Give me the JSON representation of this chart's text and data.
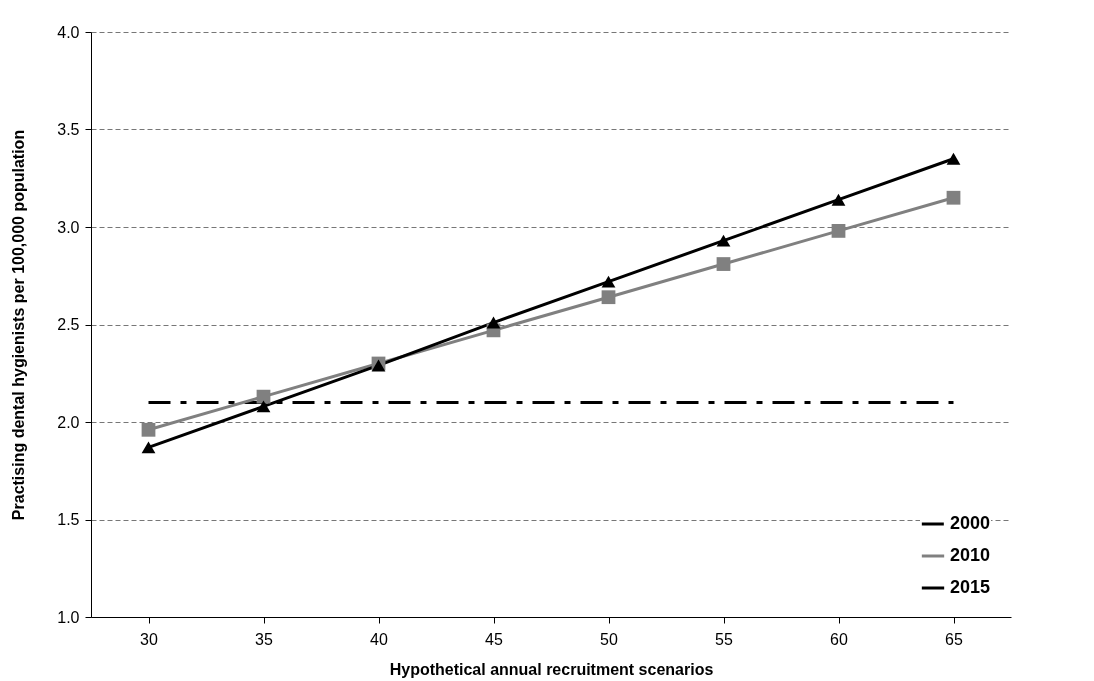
{
  "chart_data": {
    "type": "line",
    "xlabel": "Hypothetical annual recruitment scenarios",
    "ylabel": "Practising dental hygienists per 100,000 population",
    "categories": [
      "30",
      "35",
      "40",
      "45",
      "50",
      "55",
      "60",
      "65"
    ],
    "ylim": [
      1.0,
      4.0
    ],
    "yticks": [
      {
        "value": 1,
        "label": "1.0"
      },
      {
        "value": 1.5,
        "label": "1.5"
      },
      {
        "value": 2,
        "label": "2.0"
      },
      {
        "value": 2.5,
        "label": "2.5"
      },
      {
        "value": 3,
        "label": "3.0"
      },
      {
        "value": 3.5,
        "label": "3.5"
      },
      {
        "value": 4,
        "label": "4.0"
      }
    ],
    "grid": "y",
    "legend": "bottom right",
    "series": [
      {
        "name": "2000",
        "color": "#000000",
        "line_style": "dashed",
        "marker": "none",
        "values": [
          2.1,
          2.1,
          2.1,
          2.1,
          2.1,
          2.1,
          2.1,
          2.1
        ]
      },
      {
        "name": "2010",
        "color": "#808080",
        "line_style": "solid",
        "marker": "square",
        "values": [
          1.96,
          2.13,
          2.3,
          2.47,
          2.64,
          2.81,
          2.98,
          3.15
        ]
      },
      {
        "name": "2015",
        "color": "#000000",
        "line_style": "solid",
        "marker": "triangle",
        "values": [
          1.87,
          2.08,
          2.29,
          2.51,
          2.72,
          2.93,
          3.14,
          3.35
        ]
      }
    ]
  }
}
